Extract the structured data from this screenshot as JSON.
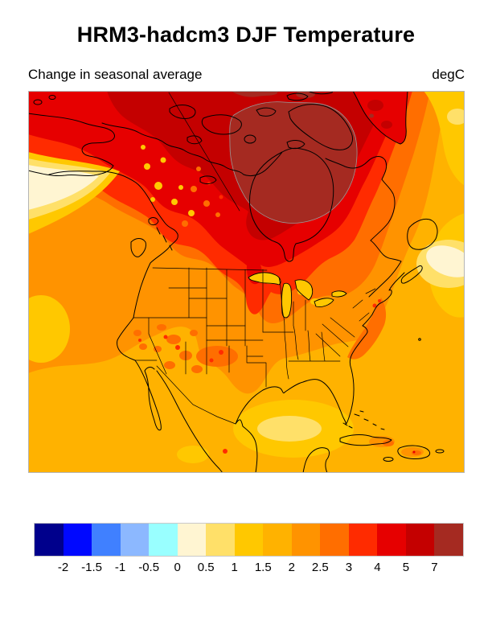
{
  "header": {
    "title": "HRM3-hadcm3 DJF Temperature",
    "subtitle_left": "Change in seasonal average",
    "units_label": "degC"
  },
  "chart_data": {
    "type": "heatmap",
    "subtype": "filled_contour_map",
    "title": "HRM3-hadcm3 DJF Temperature",
    "subtitle": "Change in seasonal average",
    "units": "degC",
    "region": "North America",
    "grid": false,
    "legend_position": "bottom-horizontal-colorbar",
    "colorbar": {
      "orientation": "horizontal",
      "tick_labels": [
        "-2",
        "-1.5",
        "-1",
        "-0.5",
        "0",
        "0.5",
        "1",
        "1.5",
        "2",
        "2.5",
        "3",
        "4",
        "5",
        "7"
      ],
      "levels_degC": [
        -2,
        -1.5,
        -1,
        -0.5,
        0,
        0.5,
        1,
        1.5,
        2,
        2.5,
        3,
        4,
        5,
        7
      ],
      "colors": [
        "#00008C",
        "#0008FF",
        "#4080FF",
        "#8CB8FF",
        "#99FFFF",
        "#FFF5D2",
        "#FFE069",
        "#FFC800",
        "#FFB200",
        "#FF9300",
        "#FF6E00",
        "#FF2B00",
        "#E60000",
        "#C40000",
        "#A52A21"
      ]
    },
    "value_summary": [
      {
        "area": "Hudson Bay / Foxe Basin / Baffin region",
        "approx_change_degC": "7+"
      },
      {
        "area": "Canadian Arctic archipelago",
        "approx_change_degC": "5 to 7"
      },
      {
        "area": "Central and northern Canada, Greenland tip",
        "approx_change_degC": "4 to 5"
      },
      {
        "area": "Alaska interior, Yukon, northern prairies tongue",
        "approx_change_degC": "3 to 4"
      },
      {
        "area": "Southern Canada, northern US tier, Rockies patches",
        "approx_change_degC": "3 to 4"
      },
      {
        "area": "Most of contiguous US and Mexico",
        "approx_change_degC": "2.5 to 3"
      },
      {
        "area": "Oceans, southern US coastal areas, Caribbean",
        "approx_change_degC": "2 to 2.5"
      },
      {
        "area": "Gulf of Mexico core, NW Atlantic patch, Gulf of Alaska coast",
        "approx_change_degC": "0.5 to 2"
      }
    ],
    "map_features": [
      "North America coastlines",
      "US state borders",
      "US-Canada border",
      "Alaska-Yukon border",
      "Great Lakes",
      "Hudson Bay",
      "Arctic islands",
      "Greenland tip",
      "Cuba and Caribbean islands"
    ]
  }
}
